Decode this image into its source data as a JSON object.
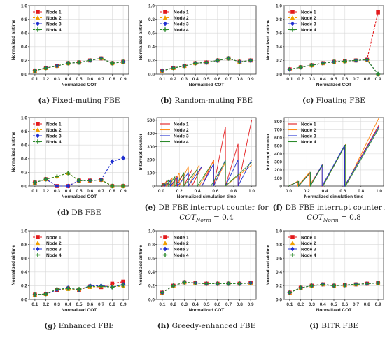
{
  "chart_data": [
    {
      "type": "line",
      "caption_letter": "(a)",
      "caption": "Fixed-muting FBE",
      "xlabel": "Normalized COT",
      "ylabel": "Normalized airtime",
      "xlim": [
        0.05,
        0.95
      ],
      "ylim": [
        0,
        1.0
      ],
      "xticks": [
        "0.1",
        "0.2",
        "0.3",
        "0.4",
        "0.5",
        "0.6",
        "0.7",
        "0.8",
        "0.9"
      ],
      "yticks": [
        "0.0",
        "0.2",
        "0.4",
        "0.6",
        "0.8",
        "1.0"
      ],
      "legend": "top-left",
      "x": [
        0.1,
        0.2,
        0.3,
        0.4,
        0.5,
        0.6,
        0.7,
        0.8,
        0.9
      ],
      "series": [
        {
          "name": "Node 1",
          "values": [
            0.05,
            0.09,
            0.12,
            0.16,
            0.17,
            0.2,
            0.23,
            0.16,
            0.18
          ]
        },
        {
          "name": "Node 2",
          "values": [
            0.05,
            0.09,
            0.12,
            0.16,
            0.17,
            0.2,
            0.23,
            0.16,
            0.18
          ]
        },
        {
          "name": "Node 3",
          "values": [
            0.05,
            0.09,
            0.12,
            0.16,
            0.17,
            0.2,
            0.23,
            0.16,
            0.18
          ]
        },
        {
          "name": "Node 4",
          "values": [
            0.05,
            0.09,
            0.12,
            0.16,
            0.17,
            0.2,
            0.23,
            0.16,
            0.18
          ]
        }
      ]
    },
    {
      "type": "line",
      "caption_letter": "(b)",
      "caption": "Random-muting FBE",
      "xlabel": "Normalized COT",
      "ylabel": "Normalized airtime",
      "xlim": [
        0.05,
        0.95
      ],
      "ylim": [
        0,
        1.0
      ],
      "xticks": [
        "0.1",
        "0.2",
        "0.3",
        "0.4",
        "0.5",
        "0.6",
        "0.7",
        "0.8",
        "0.9"
      ],
      "yticks": [
        "0.0",
        "0.2",
        "0.4",
        "0.6",
        "0.8",
        "1.0"
      ],
      "legend": "top-left",
      "x": [
        0.1,
        0.2,
        0.3,
        0.4,
        0.5,
        0.6,
        0.7,
        0.8,
        0.9
      ],
      "series": [
        {
          "name": "Node 1",
          "values": [
            0.05,
            0.09,
            0.12,
            0.16,
            0.17,
            0.2,
            0.23,
            0.18,
            0.2
          ]
        },
        {
          "name": "Node 2",
          "values": [
            0.05,
            0.09,
            0.12,
            0.16,
            0.17,
            0.2,
            0.23,
            0.18,
            0.2
          ]
        },
        {
          "name": "Node 3",
          "values": [
            0.05,
            0.09,
            0.12,
            0.16,
            0.17,
            0.2,
            0.23,
            0.18,
            0.2
          ]
        },
        {
          "name": "Node 4",
          "values": [
            0.05,
            0.09,
            0.12,
            0.16,
            0.17,
            0.2,
            0.23,
            0.18,
            0.2
          ]
        }
      ]
    },
    {
      "type": "line",
      "caption_letter": "(c)",
      "caption": "Floating FBE",
      "xlabel": "Normalized COT",
      "ylabel": "Normalized airtime",
      "xlim": [
        0.05,
        0.95
      ],
      "ylim": [
        0,
        1.0
      ],
      "xticks": [
        "0.1",
        "0.2",
        "0.3",
        "0.4",
        "0.5",
        "0.6",
        "0.7",
        "0.8",
        "0.9"
      ],
      "yticks": [
        "0.0",
        "0.2",
        "0.4",
        "0.6",
        "0.8",
        "1.0"
      ],
      "legend": "top-left",
      "x": [
        0.1,
        0.2,
        0.3,
        0.4,
        0.5,
        0.6,
        0.7,
        0.8,
        0.9
      ],
      "series": [
        {
          "name": "Node 1",
          "values": [
            0.07,
            0.1,
            0.13,
            0.16,
            0.18,
            0.19,
            0.2,
            0.21,
            0.9
          ]
        },
        {
          "name": "Node 2",
          "values": [
            0.07,
            0.1,
            0.13,
            0.16,
            0.18,
            0.19,
            0.2,
            0.21,
            0.0
          ]
        },
        {
          "name": "Node 3",
          "values": [
            0.07,
            0.1,
            0.13,
            0.16,
            0.18,
            0.19,
            0.2,
            0.21,
            0.0
          ]
        },
        {
          "name": "Node 4",
          "values": [
            0.07,
            0.1,
            0.13,
            0.16,
            0.18,
            0.19,
            0.2,
            0.21,
            0.0
          ]
        }
      ]
    },
    {
      "type": "line",
      "caption_letter": "(d)",
      "caption": "DB FBE",
      "xlabel": "Normalized COT",
      "ylabel": "Normalized airtime",
      "xlim": [
        0.05,
        0.95
      ],
      "ylim": [
        0,
        1.0
      ],
      "xticks": [
        "0.1",
        "0.2",
        "0.3",
        "0.4",
        "0.5",
        "0.6",
        "0.7",
        "0.8",
        "0.9"
      ],
      "yticks": [
        "0.0",
        "0.2",
        "0.4",
        "0.6",
        "0.8",
        "1.0"
      ],
      "legend": "top-left",
      "x": [
        0.1,
        0.2,
        0.3,
        0.4,
        0.5,
        0.6,
        0.7,
        0.8,
        0.9
      ],
      "series": [
        {
          "name": "Node 1",
          "values": [
            0.05,
            0.1,
            0.0,
            0.0,
            0.08,
            0.08,
            0.09,
            0.0,
            0.0
          ]
        },
        {
          "name": "Node 2",
          "values": [
            0.05,
            0.1,
            0.14,
            0.19,
            0.08,
            0.08,
            0.09,
            0.0,
            0.0
          ]
        },
        {
          "name": "Node 3",
          "values": [
            0.05,
            0.1,
            0.0,
            0.0,
            0.08,
            0.08,
            0.09,
            0.36,
            0.41
          ]
        },
        {
          "name": "Node 4",
          "values": [
            0.05,
            0.1,
            0.14,
            0.19,
            0.08,
            0.08,
            0.09,
            0.0,
            0.0
          ]
        }
      ]
    },
    {
      "type": "line",
      "caption_letter": "(e)",
      "caption": "DB FBE interrupt counter for",
      "caption_math_base": "COT",
      "caption_math_sub": "Norm",
      "caption_math_rest": " = 0.4",
      "xlabel": "Normalized simulation time",
      "ylabel": "Interrupt counter",
      "xlim": [
        -0.05,
        1.05
      ],
      "ylim": [
        0,
        520
      ],
      "xticks": [
        "0.0",
        "0.2",
        "0.4",
        "0.6",
        "0.8",
        "1.0"
      ],
      "yticks": [
        "0",
        "100",
        "200",
        "300",
        "400",
        "500"
      ],
      "legend": "top-left",
      "series": [
        {
          "name": "Node 1",
          "x": [
            0,
            0.02,
            0.02,
            0.06,
            0.06,
            0.11,
            0.11,
            0.17,
            0.17,
            0.25,
            0.25,
            0.34,
            0.34,
            0.45,
            0.45,
            0.58,
            0.58,
            0.71,
            0.71,
            0.85,
            0.85,
            1.0
          ],
          "values": [
            0,
            25,
            0,
            40,
            0,
            55,
            0,
            75,
            0,
            100,
            0,
            125,
            0,
            150,
            0,
            200,
            0,
            450,
            0,
            320,
            0,
            500
          ]
        },
        {
          "name": "Node 2",
          "x": [
            0,
            0.05,
            0.05,
            0.12,
            0.12,
            0.2,
            0.2,
            0.3,
            0.3,
            0.42,
            0.42,
            0.58,
            0.58,
            0.71,
            0.71,
            1.0
          ],
          "values": [
            0,
            30,
            0,
            60,
            0,
            100,
            0,
            150,
            0,
            160,
            0,
            190,
            0,
            180,
            0,
            160
          ]
        },
        {
          "name": "Node 3",
          "x": [
            0,
            0.04,
            0.04,
            0.1,
            0.1,
            0.18,
            0.18,
            0.3,
            0.3,
            0.45,
            0.45,
            0.58,
            0.58,
            0.71,
            0.71,
            0.85,
            0.85,
            1.0
          ],
          "values": [
            0,
            15,
            0,
            40,
            0,
            65,
            0,
            100,
            0,
            150,
            0,
            170,
            0,
            200,
            0,
            200,
            0,
            200
          ]
        },
        {
          "name": "Node 4",
          "x": [
            0,
            0.03,
            0.03,
            0.08,
            0.08,
            0.15,
            0.15,
            0.25,
            0.25,
            0.4,
            0.4,
            0.55,
            0.55,
            0.71,
            0.71,
            1.0
          ],
          "values": [
            0,
            20,
            0,
            45,
            0,
            70,
            0,
            100,
            0,
            130,
            0,
            160,
            0,
            190,
            0,
            180
          ]
        }
      ]
    },
    {
      "type": "line",
      "caption_letter": "(f)",
      "caption": "DB FBE interrupt counter for",
      "caption_math_base": "COT",
      "caption_math_sub": "Norm",
      "caption_math_rest": " = 0.8",
      "xlabel": "Normalized simulation time",
      "ylabel": "Interrupt counter",
      "xlim": [
        -0.05,
        1.05
      ],
      "ylim": [
        0,
        850
      ],
      "xticks": [
        "0.0",
        "0.2",
        "0.4",
        "0.6",
        "0.8",
        "1.0"
      ],
      "yticks": [
        "0",
        "100",
        "200",
        "300",
        "400",
        "500",
        "600",
        "700",
        "800"
      ],
      "legend": "top-left",
      "series": [
        {
          "name": "Node 1",
          "x": [
            0,
            0.1,
            0.1,
            0.23,
            0.23,
            0.37,
            0.37,
            0.62,
            0.62,
            1.0
          ],
          "values": [
            0,
            60,
            0,
            160,
            0,
            260,
            0,
            500,
            0,
            760
          ]
        },
        {
          "name": "Node 2",
          "x": [
            0,
            0.1,
            0.1,
            0.23,
            0.23,
            0.38,
            0.38,
            0.63,
            0.63,
            1.0
          ],
          "values": [
            0,
            60,
            0,
            170,
            0,
            270,
            0,
            520,
            0,
            850
          ]
        },
        {
          "name": "Node 3",
          "x": [
            0,
            0.11,
            0.11,
            0.24,
            0.24,
            0.37,
            0.37,
            0.62,
            0.62,
            1.0
          ],
          "values": [
            0,
            55,
            0,
            165,
            0,
            265,
            0,
            510,
            0,
            740
          ]
        },
        {
          "name": "Node 4",
          "x": [
            0,
            0.11,
            0.11,
            0.24,
            0.24,
            0.38,
            0.38,
            0.63,
            0.63,
            1.0
          ],
          "values": [
            0,
            58,
            0,
            168,
            0,
            268,
            0,
            515,
            0,
            720
          ]
        }
      ]
    },
    {
      "type": "line",
      "caption_letter": "(g)",
      "caption": "Enhanced FBE",
      "xlabel": "Normalized COT",
      "ylabel": "Normalized airtime",
      "xlim": [
        0.05,
        0.95
      ],
      "ylim": [
        0,
        1.0
      ],
      "xticks": [
        "0.1",
        "0.2",
        "0.3",
        "0.4",
        "0.5",
        "0.6",
        "0.7",
        "0.8",
        "0.9"
      ],
      "yticks": [
        "0.0",
        "0.2",
        "0.4",
        "0.6",
        "0.8",
        "1.0"
      ],
      "legend": "top-left",
      "x": [
        0.1,
        0.2,
        0.3,
        0.4,
        0.5,
        0.6,
        0.7,
        0.8,
        0.9
      ],
      "series": [
        {
          "name": "Node 1",
          "values": [
            0.07,
            0.08,
            0.14,
            0.16,
            0.14,
            0.19,
            0.18,
            0.23,
            0.26
          ]
        },
        {
          "name": "Node 2",
          "values": [
            0.07,
            0.08,
            0.15,
            0.15,
            0.15,
            0.18,
            0.19,
            0.19,
            0.19
          ]
        },
        {
          "name": "Node 3",
          "values": [
            0.07,
            0.08,
            0.14,
            0.17,
            0.14,
            0.2,
            0.2,
            0.18,
            0.22
          ]
        },
        {
          "name": "Node 4",
          "values": [
            0.07,
            0.08,
            0.15,
            0.16,
            0.15,
            0.19,
            0.19,
            0.18,
            0.21
          ]
        }
      ]
    },
    {
      "type": "line",
      "caption_letter": "(h)",
      "caption": "Greedy-enhanced FBE",
      "xlabel": "Normalized COT",
      "ylabel": "Normalized airtime",
      "xlim": [
        0.05,
        0.95
      ],
      "ylim": [
        0,
        1.0
      ],
      "xticks": [
        "0.1",
        "0.2",
        "0.3",
        "0.4",
        "0.5",
        "0.6",
        "0.7",
        "0.8",
        "0.9"
      ],
      "yticks": [
        "0.0",
        "0.2",
        "0.4",
        "0.6",
        "0.8",
        "1.0"
      ],
      "legend": "top-left",
      "x": [
        0.1,
        0.2,
        0.3,
        0.4,
        0.5,
        0.6,
        0.7,
        0.8,
        0.9
      ],
      "series": [
        {
          "name": "Node 1",
          "values": [
            0.1,
            0.2,
            0.25,
            0.24,
            0.23,
            0.23,
            0.23,
            0.23,
            0.24
          ]
        },
        {
          "name": "Node 2",
          "values": [
            0.1,
            0.2,
            0.25,
            0.24,
            0.23,
            0.23,
            0.23,
            0.23,
            0.24
          ]
        },
        {
          "name": "Node 3",
          "values": [
            0.1,
            0.2,
            0.25,
            0.24,
            0.23,
            0.23,
            0.23,
            0.23,
            0.24
          ]
        },
        {
          "name": "Node 4",
          "values": [
            0.1,
            0.2,
            0.25,
            0.24,
            0.23,
            0.23,
            0.23,
            0.23,
            0.24
          ]
        }
      ]
    },
    {
      "type": "line",
      "caption_letter": "(i)",
      "caption": "BITR FBE",
      "xlabel": "Normalized COT",
      "ylabel": "Normalized airtime",
      "xlim": [
        0.05,
        0.95
      ],
      "ylim": [
        0,
        1.0
      ],
      "xticks": [
        "0.1",
        "0.2",
        "0.3",
        "0.4",
        "0.5",
        "0.6",
        "0.7",
        "0.8",
        "0.9"
      ],
      "yticks": [
        "0.0",
        "0.2",
        "0.4",
        "0.6",
        "0.8",
        "1.0"
      ],
      "legend": "top-left",
      "x": [
        0.1,
        0.2,
        0.3,
        0.4,
        0.5,
        0.6,
        0.7,
        0.8,
        0.9
      ],
      "series": [
        {
          "name": "Node 1",
          "values": [
            0.1,
            0.17,
            0.2,
            0.22,
            0.2,
            0.21,
            0.22,
            0.23,
            0.24
          ]
        },
        {
          "name": "Node 2",
          "values": [
            0.1,
            0.17,
            0.2,
            0.22,
            0.2,
            0.21,
            0.22,
            0.23,
            0.24
          ]
        },
        {
          "name": "Node 3",
          "values": [
            0.1,
            0.17,
            0.2,
            0.22,
            0.2,
            0.21,
            0.22,
            0.23,
            0.24
          ]
        },
        {
          "name": "Node 4",
          "values": [
            0.1,
            0.17,
            0.2,
            0.22,
            0.2,
            0.21,
            0.22,
            0.23,
            0.24
          ]
        }
      ]
    }
  ],
  "styles": {
    "airtime_colors": [
      "#e31a1c",
      "#f0a000",
      "#1f2fd0",
      "#2c8a2c"
    ],
    "counter_colors": [
      "#e31a1c",
      "#ff8c1a",
      "#1f2fd0",
      "#2c8a2c"
    ],
    "markers": [
      "square",
      "triangle",
      "diamond",
      "plus"
    ],
    "axis_color": "#333333",
    "grid_color": "#d9d9d9"
  }
}
